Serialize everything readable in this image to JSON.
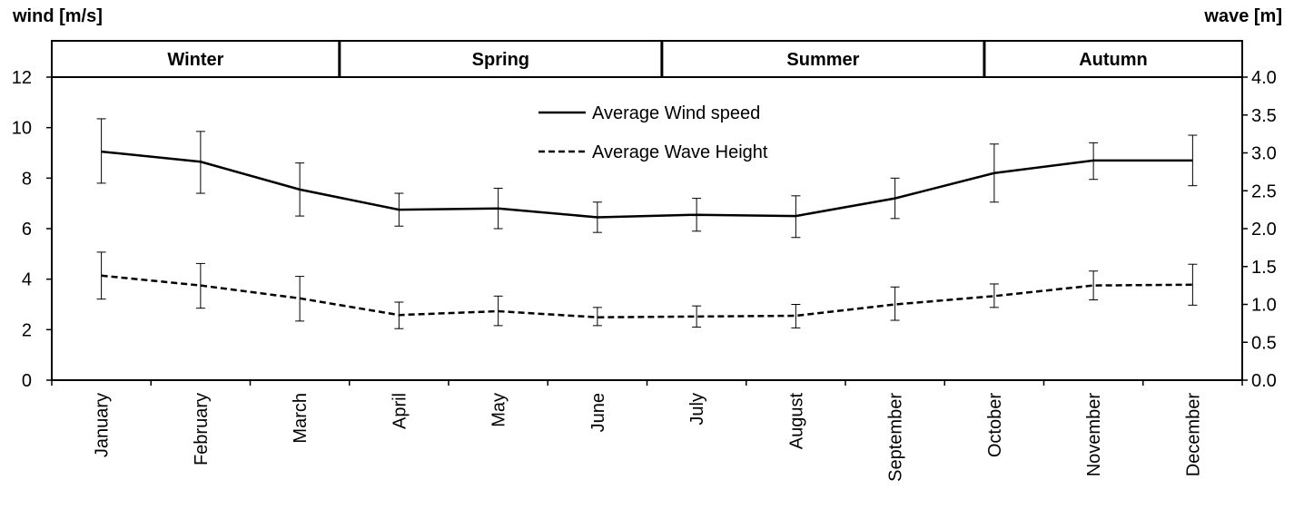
{
  "chart_data": {
    "type": "line",
    "y_left_label": "wind [m/s]",
    "y_right_label": "wave [m]",
    "y_left_range": [
      0,
      12
    ],
    "y_left_ticks": [
      "0",
      "2",
      "4",
      "6",
      "8",
      "10",
      "12"
    ],
    "y_right_range": [
      0,
      4
    ],
    "y_right_ticks": [
      "0.0",
      "0.5",
      "1.0",
      "1.5",
      "2.0",
      "2.5",
      "3.0",
      "3.5",
      "4.0"
    ],
    "categories": [
      "January",
      "February",
      "March",
      "April",
      "May",
      "June",
      "July",
      "August",
      "September",
      "October",
      "November",
      "December"
    ],
    "seasons": [
      {
        "label": "Winter",
        "start": 0,
        "end": 2.9
      },
      {
        "label": "Spring",
        "start": 2.9,
        "end": 6.15
      },
      {
        "label": "Summer",
        "start": 6.15,
        "end": 9.4
      },
      {
        "label": "Autumn",
        "start": 9.4,
        "end": 12
      }
    ],
    "legend_placement": "top-center",
    "grid": false,
    "series": [
      {
        "name": "Average Wind speed",
        "axis": "left",
        "style": "solid",
        "color": "#000000",
        "values": [
          9.05,
          8.65,
          7.55,
          6.75,
          6.8,
          6.45,
          6.55,
          6.5,
          7.2,
          8.2,
          8.7,
          8.7
        ],
        "error_high": [
          10.35,
          9.85,
          8.6,
          7.4,
          7.6,
          7.05,
          7.2,
          7.3,
          8.0,
          9.35,
          9.4,
          9.7
        ],
        "error_low": [
          7.8,
          7.4,
          6.5,
          6.1,
          6.0,
          5.85,
          5.9,
          5.65,
          6.4,
          7.05,
          7.95,
          7.7
        ]
      },
      {
        "name": "Average Wave Height",
        "axis": "right",
        "style": "dashed",
        "color": "#000000",
        "values": [
          1.38,
          1.25,
          1.08,
          0.86,
          0.91,
          0.83,
          0.84,
          0.85,
          1.0,
          1.11,
          1.25,
          1.26
        ],
        "error_high": [
          1.69,
          1.54,
          1.37,
          1.03,
          1.11,
          0.96,
          0.98,
          1.0,
          1.23,
          1.27,
          1.44,
          1.53
        ],
        "error_low": [
          1.07,
          0.95,
          0.78,
          0.68,
          0.72,
          0.72,
          0.7,
          0.69,
          0.79,
          0.96,
          1.06,
          0.99
        ]
      }
    ]
  }
}
